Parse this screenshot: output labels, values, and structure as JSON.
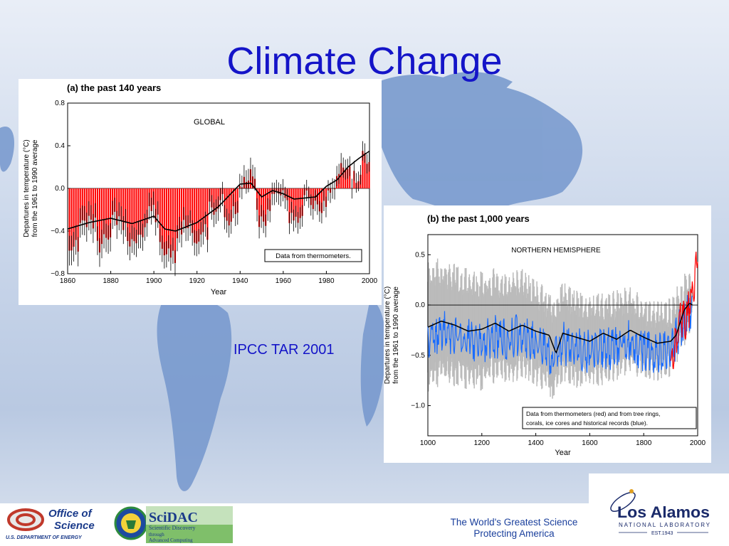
{
  "slide": {
    "title": "Climate Change",
    "caption": "IPCC TAR 2001",
    "colors": {
      "title": "#1414c8",
      "caption": "#1414c8",
      "map_land": "#6f93c9",
      "bar_red": "#ff0000",
      "proxy_blue": "#1a6cff",
      "uncertainty_gray": "#bbbbbb"
    }
  },
  "footer": {
    "office_line1": "Office of",
    "office_line2": "Science",
    "office_sub": "U.S. DEPARTMENT OF ENERGY",
    "scidac_name": "SciDAC",
    "scidac_sub1": "Scientific Discovery",
    "scidac_sub2": "through",
    "scidac_sub3": "Advanced Computing",
    "tagline_line1": "The World's Greatest Science",
    "tagline_line2": "Protecting America",
    "lanl_name": "Los Alamos",
    "lanl_sub": "NATIONAL LABORATORY",
    "lanl_est": "EST.1943"
  },
  "chart_data": [
    {
      "type": "bar",
      "title": "(a) the past 140 years",
      "region_label": "GLOBAL",
      "xlabel": "Year",
      "ylabel_line1": "Departures in temperature (°C)",
      "ylabel_line2": "from the 1961 to 1990 average",
      "xlim": [
        1860,
        2000
      ],
      "ylim": [
        -0.8,
        0.8
      ],
      "xticks": [
        "1860",
        "1880",
        "1900",
        "1920",
        "1940",
        "1960",
        "1980",
        "2000"
      ],
      "yticks": [
        "0.8",
        "0.4",
        "0.0",
        "−0.4",
        "−0.8"
      ],
      "annotation": "Data from thermometers.",
      "bar_color": "#ff0000",
      "smoothed_curve": {
        "x": [
          1860,
          1870,
          1880,
          1890,
          1900,
          1905,
          1910,
          1920,
          1930,
          1940,
          1945,
          1950,
          1955,
          1960,
          1965,
          1970,
          1975,
          1980,
          1985,
          1990,
          1995,
          2000
        ],
        "y": [
          -0.38,
          -0.32,
          -0.28,
          -0.33,
          -0.26,
          -0.38,
          -0.4,
          -0.32,
          -0.17,
          0.04,
          0.05,
          -0.08,
          -0.02,
          -0.05,
          -0.1,
          -0.09,
          -0.08,
          0.02,
          0.08,
          0.2,
          0.28,
          0.35
        ]
      },
      "annual_anchor": {
        "x": [
          1860,
          1865,
          1870,
          1875,
          1880,
          1885,
          1890,
          1895,
          1900,
          1905,
          1910,
          1915,
          1920,
          1925,
          1930,
          1935,
          1940,
          1944,
          1950,
          1955,
          1960,
          1965,
          1970,
          1975,
          1980,
          1985,
          1990,
          1995,
          1998,
          2000
        ],
        "y": [
          -0.4,
          -0.34,
          -0.3,
          -0.36,
          -0.26,
          -0.34,
          -0.36,
          -0.3,
          -0.22,
          -0.36,
          -0.45,
          -0.3,
          -0.28,
          -0.22,
          -0.14,
          -0.1,
          0.02,
          0.15,
          -0.14,
          -0.08,
          -0.05,
          -0.1,
          -0.08,
          -0.16,
          0.08,
          0.1,
          0.25,
          0.28,
          0.55,
          0.32
        ]
      }
    },
    {
      "type": "line",
      "title": "(b) the past 1,000 years",
      "region_label": "NORTHERN HEMISPHERE",
      "xlabel": "Year",
      "ylabel_line1": "Departures in temperature (°C)",
      "ylabel_line2": "from the 1961 to 1990 average",
      "xlim": [
        1000,
        2000
      ],
      "ylim": [
        -1.3,
        0.7
      ],
      "xticks": [
        "1000",
        "1200",
        "1400",
        "1600",
        "1800",
        "2000"
      ],
      "yticks": [
        "0.5",
        "0.0",
        "−0.5",
        "−1.0"
      ],
      "annotation_line1": "Data from thermometers (red) and from tree rings,",
      "annotation_line2": "corals, ice cores and historical records (blue).",
      "series": [
        {
          "color": "#1a6cff",
          "anchor_x": [
            1000,
            1050,
            1100,
            1150,
            1200,
            1250,
            1300,
            1350,
            1400,
            1450,
            1460,
            1500,
            1550,
            1600,
            1650,
            1700,
            1750,
            1800,
            1850,
            1900,
            1950,
            1980
          ],
          "anchor_y": [
            -0.22,
            -0.16,
            -0.2,
            -0.24,
            -0.26,
            -0.2,
            -0.24,
            -0.18,
            -0.28,
            -0.36,
            -0.48,
            -0.26,
            -0.34,
            -0.35,
            -0.34,
            -0.3,
            -0.24,
            -0.34,
            -0.36,
            -0.32,
            -0.05,
            0.05
          ]
        },
        {
          "color": "#ff0000",
          "anchor_x": [
            1900,
            1920,
            1940,
            1960,
            1980,
            2000
          ],
          "anchor_y": [
            -0.45,
            -0.3,
            0.0,
            -0.05,
            0.25,
            0.6
          ]
        }
      ],
      "smoothed_curve": {
        "x": [
          1000,
          1050,
          1100,
          1150,
          1200,
          1250,
          1300,
          1350,
          1400,
          1450,
          1475,
          1500,
          1550,
          1600,
          1650,
          1700,
          1750,
          1800,
          1850,
          1900,
          1920,
          1950,
          1970,
          1980
        ],
        "y": [
          -0.22,
          -0.16,
          -0.2,
          -0.26,
          -0.24,
          -0.18,
          -0.26,
          -0.2,
          -0.26,
          -0.3,
          -0.48,
          -0.28,
          -0.32,
          -0.36,
          -0.28,
          -0.34,
          -0.25,
          -0.32,
          -0.38,
          -0.36,
          -0.3,
          -0.05,
          0.02,
          0.0
        ]
      }
    }
  ]
}
